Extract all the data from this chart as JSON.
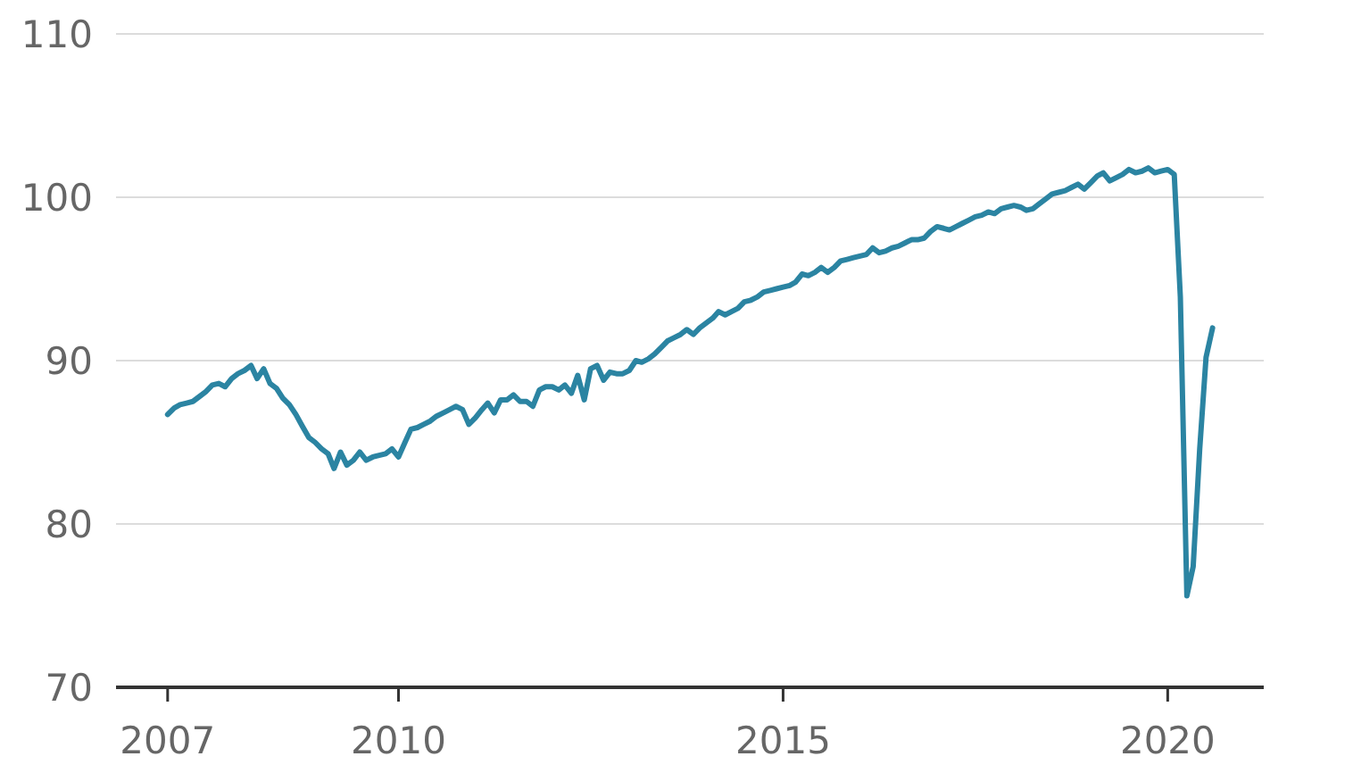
{
  "chart_data": {
    "type": "line",
    "color": "#2b84a2",
    "grid": "y",
    "x": [
      "2007-01",
      "2007-02",
      "2007-03",
      "2007-04",
      "2007-05",
      "2007-06",
      "2007-07",
      "2007-08",
      "2007-09",
      "2007-10",
      "2007-11",
      "2007-12",
      "2008-01",
      "2008-02",
      "2008-03",
      "2008-04",
      "2008-05",
      "2008-06",
      "2008-07",
      "2008-08",
      "2008-09",
      "2008-10",
      "2008-11",
      "2008-12",
      "2009-01",
      "2009-02",
      "2009-03",
      "2009-04",
      "2009-05",
      "2009-06",
      "2009-07",
      "2009-08",
      "2009-09",
      "2009-10",
      "2009-11",
      "2009-12",
      "2010-01",
      "2010-02",
      "2010-03",
      "2010-04",
      "2010-05",
      "2010-06",
      "2010-07",
      "2010-08",
      "2010-09",
      "2010-10",
      "2010-11",
      "2010-12",
      "2011-01",
      "2011-02",
      "2011-03",
      "2011-04",
      "2011-05",
      "2011-06",
      "2011-07",
      "2011-08",
      "2011-09",
      "2011-10",
      "2011-11",
      "2011-12",
      "2012-01",
      "2012-02",
      "2012-03",
      "2012-04",
      "2012-05",
      "2012-06",
      "2012-07",
      "2012-08",
      "2012-09",
      "2012-10",
      "2012-11",
      "2012-12",
      "2013-01",
      "2013-02",
      "2013-03",
      "2013-04",
      "2013-05",
      "2013-06",
      "2013-07",
      "2013-08",
      "2013-09",
      "2013-10",
      "2013-11",
      "2013-12",
      "2014-01",
      "2014-02",
      "2014-03",
      "2014-04",
      "2014-05",
      "2014-06",
      "2014-07",
      "2014-08",
      "2014-09",
      "2014-10",
      "2014-11",
      "2014-12",
      "2015-01",
      "2015-02",
      "2015-03",
      "2015-04",
      "2015-05",
      "2015-06",
      "2015-07",
      "2015-08",
      "2015-09",
      "2015-10",
      "2015-11",
      "2015-12",
      "2016-01",
      "2016-02",
      "2016-03",
      "2016-04",
      "2016-05",
      "2016-06",
      "2016-07",
      "2016-08",
      "2016-09",
      "2016-10",
      "2016-11",
      "2016-12",
      "2017-01",
      "2017-02",
      "2017-03",
      "2017-04",
      "2017-05",
      "2017-06",
      "2017-07",
      "2017-08",
      "2017-09",
      "2017-10",
      "2017-11",
      "2017-12",
      "2018-01",
      "2018-02",
      "2018-03",
      "2018-04",
      "2018-05",
      "2018-06",
      "2018-07",
      "2018-08",
      "2018-09",
      "2018-10",
      "2018-11",
      "2018-12",
      "2019-01",
      "2019-02",
      "2019-03",
      "2019-04",
      "2019-05",
      "2019-06",
      "2019-07",
      "2019-08",
      "2019-09",
      "2019-10",
      "2019-11",
      "2019-12",
      "2020-01",
      "2020-02",
      "2020-03",
      "2020-04",
      "2020-05",
      "2020-06",
      "2020-07",
      "2020-08"
    ],
    "values": [
      86.7,
      87.1,
      87.3,
      87.4,
      87.5,
      87.8,
      88.1,
      88.5,
      88.6,
      88.4,
      88.9,
      89.2,
      89.4,
      89.7,
      88.9,
      89.5,
      88.6,
      88.3,
      87.7,
      87.3,
      86.7,
      86.0,
      85.3,
      85.0,
      84.6,
      84.3,
      83.4,
      84.4,
      83.6,
      83.9,
      84.4,
      83.9,
      84.1,
      84.2,
      84.3,
      84.6,
      84.1,
      85.0,
      85.8,
      85.9,
      86.1,
      86.3,
      86.6,
      86.8,
      87.0,
      87.2,
      87.0,
      86.1,
      86.5,
      87.0,
      87.4,
      86.8,
      87.6,
      87.6,
      87.9,
      87.5,
      87.5,
      87.2,
      88.2,
      88.4,
      88.4,
      88.2,
      88.5,
      88.0,
      89.1,
      87.6,
      89.5,
      89.7,
      88.8,
      89.3,
      89.2,
      89.2,
      89.4,
      90.0,
      89.9,
      90.1,
      90.4,
      90.8,
      91.2,
      91.4,
      91.6,
      91.9,
      91.6,
      92.0,
      92.3,
      92.6,
      93.0,
      92.8,
      93.0,
      93.2,
      93.6,
      93.7,
      93.9,
      94.2,
      94.3,
      94.4,
      94.5,
      94.6,
      94.8,
      95.3,
      95.2,
      95.4,
      95.7,
      95.4,
      95.7,
      96.1,
      96.2,
      96.3,
      96.4,
      96.5,
      96.9,
      96.6,
      96.7,
      96.9,
      97.0,
      97.2,
      97.4,
      97.4,
      97.5,
      97.9,
      98.2,
      98.1,
      98.0,
      98.2,
      98.4,
      98.6,
      98.8,
      98.9,
      99.1,
      99.0,
      99.3,
      99.4,
      99.5,
      99.4,
      99.2,
      99.3,
      99.6,
      99.9,
      100.2,
      100.3,
      100.4,
      100.6,
      100.8,
      100.5,
      100.9,
      101.3,
      101.5,
      101.0,
      101.2,
      101.4,
      101.7,
      101.5,
      101.6,
      101.8,
      101.5,
      101.6,
      101.7,
      101.4,
      93.9,
      75.6,
      77.4,
      84.6,
      90.2,
      92.0
    ],
    "xlim": [
      "2006-05",
      "2021-04"
    ],
    "xticks": [
      "2007",
      "2010",
      "2015",
      "2020"
    ],
    "ylim": [
      70,
      110
    ],
    "yticks": [
      70,
      80,
      90,
      100,
      110
    ]
  }
}
